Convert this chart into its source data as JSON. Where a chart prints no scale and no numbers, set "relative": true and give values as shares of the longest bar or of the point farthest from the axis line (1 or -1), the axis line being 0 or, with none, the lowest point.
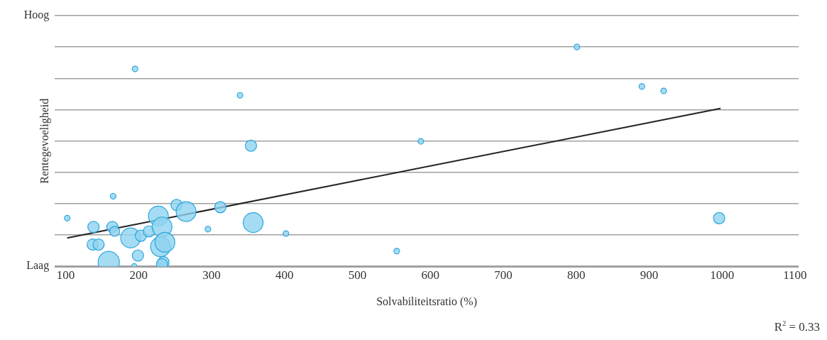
{
  "chart_data": {
    "type": "bubble",
    "xlabel": "Solvabiliteitsratio (%)",
    "ylabel": "Rentegevoeligheid",
    "xlim": [
      85,
      1105
    ],
    "xticks": [
      100,
      200,
      300,
      400,
      500,
      600,
      700,
      800,
      900,
      1000,
      1100
    ],
    "relative": true,
    "grid": "y",
    "legend": false,
    "marker": "circle",
    "series": [
      {
        "type": "bubble",
        "color": "#8fd3f0",
        "x": [
          102,
          165,
          195,
          138,
          164,
          167,
          137,
          145,
          159,
          189,
          199,
          203,
          194,
          214,
          227,
          232,
          230,
          236,
          234,
          232,
          252,
          265,
          295,
          312,
          339,
          354,
          357,
          402,
          554,
          587,
          801,
          890,
          920,
          996
        ],
        "values": [
          0.22,
          0.32,
          0.9,
          0.18,
          0.18,
          0.16,
          0.1,
          0.1,
          0.02,
          0.13,
          0.05,
          0.14,
          0.0,
          0.16,
          0.23,
          0.18,
          0.09,
          0.11,
          0.02,
          0.01,
          0.28,
          0.25,
          0.17,
          0.27,
          0.78,
          0.55,
          0.2,
          0.15,
          0.07,
          0.57,
          1,
          0.82,
          0.8,
          0.22
        ],
        "sizes": [
          0.07,
          0.07,
          0.07,
          0.28,
          0.28,
          0.22,
          0.28,
          0.28,
          1,
          0.87,
          0.28,
          0.28,
          0.07,
          0.28,
          0.87,
          0.87,
          0.87,
          0.87,
          0.28,
          0.28,
          0.28,
          0.87,
          0.07,
          0.28,
          0.07,
          0.28,
          0.87,
          0.07,
          0.07,
          0.07,
          0.07,
          0.07,
          0.07,
          0.28
        ]
      },
      {
        "type": "line",
        "color": "#222222",
        "x": [
          102,
          998
        ],
        "values": [
          0.13,
          0.72
        ],
        "marker": "none"
      }
    ],
    "annotations": [
      "Hoog",
      "Laag",
      "R$^{2}$ = 0.33"
    ]
  }
}
